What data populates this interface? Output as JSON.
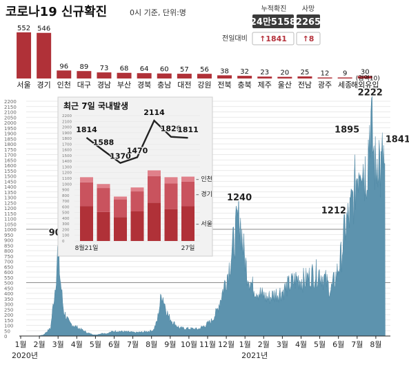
{
  "header": {
    "title": "코로나19 신규확진",
    "subtitle": "0시 기준, 단위:명",
    "stats": {
      "cumulative_label": "누적확진",
      "cumulative_value": "24만5158",
      "deaths_label": "사망",
      "deaths_value": "2265",
      "change_label": "전일대비",
      "cumulative_change": "↑1841",
      "deaths_change": "↑8"
    }
  },
  "colors": {
    "accent": "#b5323c",
    "bar_dark": "#b03138",
    "bar_mid": "#c9535e",
    "bar_light": "#e0808a",
    "area": "#5d93ae",
    "panel_bg": "#f2f2f2"
  },
  "chart_data": [
    {
      "type": "bar",
      "categories": [
        "서울",
        "경기",
        "인천",
        "대구",
        "경남",
        "부산",
        "경북",
        "충남",
        "대전",
        "강원",
        "전북",
        "충북",
        "제주",
        "울산",
        "전남",
        "광주",
        "세종",
        "해외유입"
      ],
      "values": [
        552,
        546,
        96,
        89,
        73,
        68,
        64,
        60,
        57,
        56,
        38,
        32,
        23,
        20,
        25,
        12,
        9,
        30
      ],
      "annotations": [
        {
          "category": "해외유입",
          "text": "(검역10)"
        }
      ]
    },
    {
      "type": "area",
      "yticks": [
        0,
        50,
        100,
        150,
        200,
        250,
        300,
        350,
        400,
        450,
        500,
        550,
        600,
        650,
        700,
        750,
        800,
        850,
        900,
        950,
        1000,
        1050,
        1100,
        1150,
        1200,
        1250,
        1300,
        1350,
        1400,
        1450,
        1500,
        1550,
        1600,
        1650,
        1700,
        1750,
        1800,
        1850,
        1900,
        1950,
        2000,
        2050,
        2100,
        2150,
        2200
      ],
      "ylim": [
        0,
        2200
      ],
      "x_ticks": [
        "1월",
        "2월",
        "3월",
        "4월",
        "5월",
        "6월",
        "7월",
        "8월",
        "9월",
        "10월",
        "11월",
        "12월",
        "1월",
        "2월",
        "3월",
        "4월",
        "5월",
        "6월",
        "7월",
        "8월"
      ],
      "year_labels": [
        "2020년",
        "2021년"
      ],
      "peak_labels": [
        {
          "month_index": 2.0,
          "value": 909,
          "text": "909"
        },
        {
          "month_index": 11.7,
          "value": 1240,
          "text": "1240"
        },
        {
          "month_index": 17.6,
          "value": 1212,
          "text": "1212"
        },
        {
          "month_index": 18.2,
          "value": 1895,
          "text": "1895"
        },
        {
          "month_index": 18.7,
          "value": 2222,
          "text": "2222"
        },
        {
          "month_index": 19.4,
          "value": 1841,
          "text": "1841"
        }
      ],
      "series_anchors": [
        [
          0,
          0
        ],
        [
          0.9,
          0
        ],
        [
          1.2,
          10
        ],
        [
          1.6,
          80
        ],
        [
          1.85,
          500
        ],
        [
          2.0,
          909
        ],
        [
          2.1,
          600
        ],
        [
          2.3,
          250
        ],
        [
          2.6,
          130
        ],
        [
          3.0,
          90
        ],
        [
          3.3,
          60
        ],
        [
          3.6,
          30
        ],
        [
          4.0,
          10
        ],
        [
          4.2,
          20
        ],
        [
          4.4,
          30
        ],
        [
          4.6,
          25
        ],
        [
          4.9,
          45
        ],
        [
          5.1,
          50
        ],
        [
          5.5,
          45
        ],
        [
          5.9,
          40
        ],
        [
          6.1,
          35
        ],
        [
          6.5,
          40
        ],
        [
          6.9,
          50
        ],
        [
          7.1,
          60
        ],
        [
          7.3,
          150
        ],
        [
          7.55,
          441
        ],
        [
          7.7,
          330
        ],
        [
          7.9,
          200
        ],
        [
          8.2,
          130
        ],
        [
          8.5,
          80
        ],
        [
          9.0,
          75
        ],
        [
          9.5,
          70
        ],
        [
          9.8,
          100
        ],
        [
          10.2,
          150
        ],
        [
          10.5,
          250
        ],
        [
          10.8,
          450
        ],
        [
          11.1,
          650
        ],
        [
          11.4,
          950
        ],
        [
          11.7,
          1240
        ],
        [
          11.9,
          900
        ],
        [
          12.1,
          650
        ],
        [
          12.4,
          500
        ],
        [
          12.8,
          430
        ],
        [
          13.2,
          380
        ],
        [
          13.6,
          420
        ],
        [
          14.0,
          450
        ],
        [
          14.4,
          520
        ],
        [
          14.8,
          580
        ],
        [
          15.2,
          560
        ],
        [
          15.6,
          620
        ],
        [
          16.0,
          640
        ],
        [
          16.3,
          560
        ],
        [
          16.6,
          460
        ],
        [
          16.9,
          620
        ],
        [
          17.15,
          800
        ],
        [
          17.35,
          1100
        ],
        [
          17.6,
          1212
        ],
        [
          17.85,
          1450
        ],
        [
          18.0,
          1650
        ],
        [
          18.2,
          1895
        ],
        [
          18.4,
          1650
        ],
        [
          18.55,
          1750
        ],
        [
          18.7,
          2222
        ],
        [
          18.85,
          1900
        ],
        [
          19.0,
          1650
        ],
        [
          19.15,
          1950
        ],
        [
          19.25,
          1600
        ],
        [
          19.4,
          1841
        ],
        [
          19.5,
          1500
        ]
      ]
    },
    {
      "type": "line",
      "title": "최근 7일 국내발생",
      "categories": [
        "8월21일",
        "",
        "",
        "",
        "",
        "",
        "27일"
      ],
      "values": [
        1814,
        1588,
        1370,
        1470,
        2114,
        1829,
        1811
      ],
      "yticks": [
        0,
        100,
        200,
        300,
        400,
        500,
        600,
        700,
        800,
        900,
        1000,
        1100,
        1200,
        1300,
        1400,
        1500,
        1600,
        1700,
        1800,
        1900,
        2000,
        2100,
        2200
      ],
      "ylim": [
        0,
        2200
      ]
    },
    {
      "type": "bar",
      "stacked": true,
      "categories": [
        "8월21일",
        "",
        "",
        "",
        "",
        "",
        "27일"
      ],
      "series": [
        {
          "name": "서울",
          "values": [
            610,
            510,
            420,
            520,
            670,
            560,
            610
          ]
        },
        {
          "name": "경기",
          "values": [
            420,
            420,
            310,
            350,
            470,
            450,
            430
          ]
        },
        {
          "name": "인천",
          "values": [
            90,
            70,
            50,
            70,
            100,
            110,
            90
          ]
        }
      ]
    }
  ]
}
